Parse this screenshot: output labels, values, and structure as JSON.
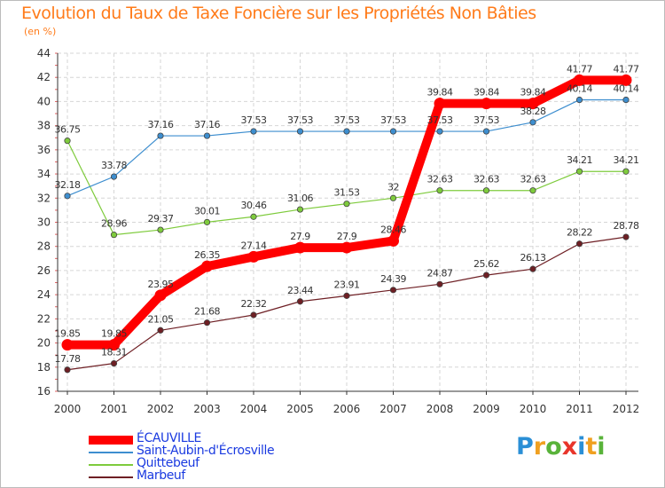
{
  "chart_data": {
    "type": "line",
    "title": "Evolution du Taux de Taxe Foncière sur les Propriétés Non Bâties",
    "ylabel": "(en %)",
    "xlabel": "",
    "ylim": [
      16,
      44
    ],
    "yticks": [
      16,
      18,
      20,
      22,
      24,
      26,
      28,
      30,
      32,
      34,
      36,
      38,
      40,
      42,
      44
    ],
    "grid": true,
    "categories": [
      "2000",
      "2001",
      "2002",
      "2003",
      "2004",
      "2005",
      "2006",
      "2007",
      "2008",
      "2009",
      "2010",
      "2011",
      "2012"
    ],
    "series": [
      {
        "name": "ÉCAUVILLE",
        "color": "#ff0000",
        "values": [
          19.85,
          19.85,
          23.95,
          26.35,
          27.14,
          27.9,
          27.9,
          28.46,
          39.84,
          39.84,
          39.84,
          41.77,
          41.77
        ],
        "labels": [
          "19.85",
          "19.85",
          "23.95",
          "26.35",
          "27.14",
          "27.9",
          "27.9",
          "28.46",
          "39.84",
          "39.84",
          "39.84",
          "41.77",
          "41.77"
        ]
      },
      {
        "name": "Saint-Aubin-d'Écrosville",
        "color": "#3d8ecf",
        "values": [
          32.18,
          33.78,
          37.16,
          37.16,
          37.53,
          37.53,
          37.53,
          37.53,
          37.53,
          37.53,
          38.28,
          40.14,
          40.14
        ],
        "labels": [
          "32.18",
          "33.78",
          "37.16",
          "37.16",
          "37.53",
          "37.53",
          "37.53",
          "37.53",
          "37.53",
          "37.53",
          "38.28",
          "40.14",
          "40.14"
        ]
      },
      {
        "name": "Quittebeuf",
        "color": "#7ecb3c",
        "values": [
          36.75,
          28.96,
          29.37,
          30.01,
          30.46,
          31.06,
          31.53,
          32,
          32.63,
          32.63,
          32.63,
          34.21,
          34.21
        ],
        "labels": [
          "36.75",
          "28.96",
          "29.37",
          "30.01",
          "30.46",
          "31.06",
          "31.53",
          "32",
          "32.63",
          "32.63",
          "32.63",
          "34.21",
          "34.21"
        ]
      },
      {
        "name": "Marbeuf",
        "color": "#6e1f24",
        "values": [
          17.78,
          18.31,
          21.05,
          21.68,
          22.32,
          23.44,
          23.91,
          24.39,
          24.87,
          25.62,
          26.13,
          28.22,
          28.78
        ],
        "labels": [
          "17.78",
          "18.31",
          "21.05",
          "21.68",
          "22.32",
          "23.44",
          "23.91",
          "24.39",
          "24.87",
          "25.62",
          "26.13",
          "28.22",
          "28.78"
        ]
      }
    ]
  },
  "brand": {
    "letters": [
      "P",
      "r",
      "o",
      "x",
      "i",
      "t",
      "i"
    ],
    "colors": [
      "#2a8fd6",
      "#f0a020",
      "#59b33a",
      "#e8352b",
      "#2a8fd6",
      "#f0a020",
      "#59b33a"
    ]
  }
}
